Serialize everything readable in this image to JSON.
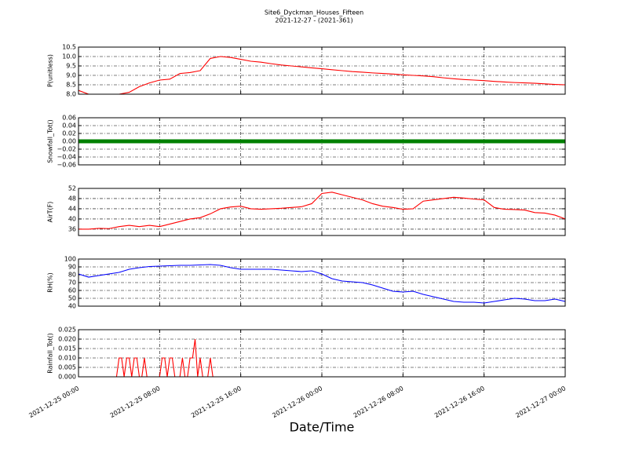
{
  "chart_data": [
    {
      "type": "line",
      "title": "Site6_Dyckman_Houses_Fifteen",
      "subtitle": "2021-12-27 - (2021-361)",
      "y_label": "P(unitless)",
      "color": "#ff0000",
      "xlim": [
        "2021-12-25 00:00",
        "2021-12-27 00:00"
      ],
      "x": [
        "2021-12-25 00:00",
        "2021-12-25 01:00",
        "2021-12-25 02:00",
        "2021-12-25 03:00",
        "2021-12-25 04:00",
        "2021-12-25 05:00",
        "2021-12-25 06:00",
        "2021-12-25 07:00",
        "2021-12-25 08:00",
        "2021-12-25 09:00",
        "2021-12-25 10:00",
        "2021-12-25 11:00",
        "2021-12-25 12:00",
        "2021-12-25 13:00",
        "2021-12-25 14:00",
        "2021-12-25 15:00",
        "2021-12-25 16:00",
        "2021-12-25 17:00",
        "2021-12-25 18:00",
        "2021-12-25 19:00",
        "2021-12-25 20:00",
        "2021-12-25 21:00",
        "2021-12-25 22:00",
        "2021-12-25 23:00",
        "2021-12-26 00:00",
        "2021-12-26 01:00",
        "2021-12-26 02:00",
        "2021-12-26 03:00",
        "2021-12-26 04:00",
        "2021-12-26 05:00",
        "2021-12-26 06:00",
        "2021-12-26 07:00",
        "2021-12-26 08:00",
        "2021-12-26 09:00",
        "2021-12-26 10:00",
        "2021-12-26 11:00",
        "2021-12-26 12:00",
        "2021-12-26 13:00",
        "2021-12-26 14:00",
        "2021-12-26 15:00",
        "2021-12-26 16:00",
        "2021-12-26 17:00",
        "2021-12-26 18:00",
        "2021-12-26 19:00",
        "2021-12-26 20:00",
        "2021-12-26 21:00",
        "2021-12-26 22:00",
        "2021-12-26 23:00",
        "2021-12-27 00:00"
      ],
      "values": [
        8.2,
        8.0,
        8.0,
        8.0,
        8.0,
        8.1,
        8.4,
        8.6,
        8.75,
        8.8,
        9.1,
        9.15,
        9.25,
        9.9,
        10.0,
        9.95,
        9.85,
        9.75,
        9.7,
        9.62,
        9.55,
        9.5,
        9.45,
        9.4,
        9.35,
        9.3,
        9.25,
        9.2,
        9.17,
        9.13,
        9.1,
        9.07,
        9.03,
        9.0,
        8.97,
        8.93,
        8.87,
        8.82,
        8.78,
        8.75,
        8.72,
        8.68,
        8.65,
        8.62,
        8.6,
        8.58,
        8.55,
        8.52,
        8.5
      ],
      "ylim": [
        8.0,
        10.5
      ],
      "yticks": [
        {
          "value": 8.0,
          "label": "8.0"
        },
        8.5,
        {
          "value": 9.0,
          "label": "9.0"
        },
        9.5,
        {
          "value": 10.0,
          "label": "10.0"
        },
        10.5
      ]
    },
    {
      "type": "line",
      "y_label": "Snowfall_Tot()",
      "color": "#008000",
      "xlim": [
        "2021-12-25 00:00",
        "2021-12-27 00:00"
      ],
      "x": [
        "2021-12-25 00:00",
        "2021-12-25 01:00",
        "2021-12-25 02:00",
        "2021-12-25 03:00",
        "2021-12-25 04:00",
        "2021-12-25 05:00",
        "2021-12-25 06:00",
        "2021-12-25 07:00",
        "2021-12-25 08:00",
        "2021-12-25 09:00",
        "2021-12-25 10:00",
        "2021-12-25 11:00",
        "2021-12-25 12:00",
        "2021-12-25 13:00",
        "2021-12-25 14:00",
        "2021-12-25 15:00",
        "2021-12-25 16:00",
        "2021-12-25 17:00",
        "2021-12-25 18:00",
        "2021-12-25 19:00",
        "2021-12-25 20:00",
        "2021-12-25 21:00",
        "2021-12-25 22:00",
        "2021-12-25 23:00",
        "2021-12-26 00:00",
        "2021-12-26 01:00",
        "2021-12-26 02:00",
        "2021-12-26 03:00",
        "2021-12-26 04:00",
        "2021-12-26 05:00",
        "2021-12-26 06:00",
        "2021-12-26 07:00",
        "2021-12-26 08:00",
        "2021-12-26 09:00",
        "2021-12-26 10:00",
        "2021-12-26 11:00",
        "2021-12-26 12:00",
        "2021-12-26 13:00",
        "2021-12-26 14:00",
        "2021-12-26 15:00",
        "2021-12-26 16:00",
        "2021-12-26 17:00",
        "2021-12-26 18:00",
        "2021-12-26 19:00",
        "2021-12-26 20:00",
        "2021-12-26 21:00",
        "2021-12-26 22:00",
        "2021-12-26 23:00",
        "2021-12-27 00:00"
      ],
      "values": [
        0,
        0,
        0,
        0,
        0,
        0,
        0,
        0,
        0,
        0,
        0,
        0,
        0,
        0,
        0,
        0,
        0,
        0,
        0,
        0,
        0,
        0,
        0,
        0,
        0,
        0,
        0,
        0,
        0,
        0,
        0,
        0,
        0,
        0,
        0,
        0,
        0,
        0,
        0,
        0,
        0,
        0,
        0,
        0,
        0,
        0,
        0,
        0,
        0
      ],
      "ylim": [
        -0.06,
        0.06
      ],
      "yticks": [
        {
          "value": -0.06,
          "label": "−0.06"
        },
        {
          "value": -0.04,
          "label": "−0.04"
        },
        {
          "value": -0.02,
          "label": "−0.02"
        },
        {
          "value": 0,
          "label": "0.00"
        },
        0.02,
        0.04,
        0.06
      ]
    },
    {
      "type": "line",
      "y_label": "AirT(F)",
      "color": "#ff0000",
      "xlim": [
        "2021-12-25 00:00",
        "2021-12-27 00:00"
      ],
      "x": [
        "2021-12-25 00:00",
        "2021-12-25 01:00",
        "2021-12-25 02:00",
        "2021-12-25 03:00",
        "2021-12-25 04:00",
        "2021-12-25 05:00",
        "2021-12-25 06:00",
        "2021-12-25 07:00",
        "2021-12-25 08:00",
        "2021-12-25 09:00",
        "2021-12-25 10:00",
        "2021-12-25 11:00",
        "2021-12-25 12:00",
        "2021-12-25 13:00",
        "2021-12-25 14:00",
        "2021-12-25 15:00",
        "2021-12-25 16:00",
        "2021-12-25 17:00",
        "2021-12-25 18:00",
        "2021-12-25 19:00",
        "2021-12-25 20:00",
        "2021-12-25 21:00",
        "2021-12-25 22:00",
        "2021-12-25 23:00",
        "2021-12-26 00:00",
        "2021-12-26 01:00",
        "2021-12-26 02:00",
        "2021-12-26 03:00",
        "2021-12-26 04:00",
        "2021-12-26 05:00",
        "2021-12-26 06:00",
        "2021-12-26 07:00",
        "2021-12-26 08:00",
        "2021-12-26 09:00",
        "2021-12-26 10:00",
        "2021-12-26 11:00",
        "2021-12-26 12:00",
        "2021-12-26 13:00",
        "2021-12-26 14:00",
        "2021-12-26 15:00",
        "2021-12-26 16:00",
        "2021-12-26 17:00",
        "2021-12-26 18:00",
        "2021-12-26 19:00",
        "2021-12-26 20:00",
        "2021-12-26 21:00",
        "2021-12-26 22:00",
        "2021-12-26 23:00",
        "2021-12-27 00:00"
      ],
      "values": [
        36,
        36,
        36.3,
        36.2,
        37,
        37.5,
        37,
        37.5,
        37,
        38,
        39,
        40,
        40.5,
        42,
        44,
        44.7,
        45,
        44,
        43.8,
        44,
        44.2,
        44.5,
        44.8,
        46,
        50,
        50.5,
        49.5,
        48.5,
        47.5,
        46,
        45,
        44.5,
        43.8,
        44,
        47,
        47.5,
        48,
        48.5,
        48.2,
        47.8,
        47.5,
        44.5,
        43.8,
        43.7,
        43.5,
        42.5,
        42.3,
        41.5,
        40
      ],
      "ylim": [
        33.5,
        52
      ],
      "yticks": [
        36,
        40,
        44,
        48,
        52
      ]
    },
    {
      "type": "line",
      "y_label": "RH(%)",
      "color": "#0000ff",
      "xlim": [
        "2021-12-25 00:00",
        "2021-12-27 00:00"
      ],
      "x": [
        "2021-12-25 00:00",
        "2021-12-25 01:00",
        "2021-12-25 02:00",
        "2021-12-25 03:00",
        "2021-12-25 04:00",
        "2021-12-25 05:00",
        "2021-12-25 06:00",
        "2021-12-25 07:00",
        "2021-12-25 08:00",
        "2021-12-25 09:00",
        "2021-12-25 10:00",
        "2021-12-25 11:00",
        "2021-12-25 12:00",
        "2021-12-25 13:00",
        "2021-12-25 14:00",
        "2021-12-25 15:00",
        "2021-12-25 16:00",
        "2021-12-25 17:00",
        "2021-12-25 18:00",
        "2021-12-25 19:00",
        "2021-12-25 20:00",
        "2021-12-25 21:00",
        "2021-12-25 22:00",
        "2021-12-25 23:00",
        "2021-12-26 00:00",
        "2021-12-26 01:00",
        "2021-12-26 02:00",
        "2021-12-26 03:00",
        "2021-12-26 04:00",
        "2021-12-26 05:00",
        "2021-12-26 06:00",
        "2021-12-26 07:00",
        "2021-12-26 08:00",
        "2021-12-26 09:00",
        "2021-12-26 10:00",
        "2021-12-26 11:00",
        "2021-12-26 12:00",
        "2021-12-26 13:00",
        "2021-12-26 14:00",
        "2021-12-26 15:00",
        "2021-12-26 16:00",
        "2021-12-26 17:00",
        "2021-12-26 18:00",
        "2021-12-26 19:00",
        "2021-12-26 20:00",
        "2021-12-26 21:00",
        "2021-12-26 22:00",
        "2021-12-26 23:00",
        "2021-12-27 00:00"
      ],
      "values": [
        81,
        77,
        79,
        81,
        83,
        87,
        89,
        90.5,
        91,
        91.5,
        92,
        92,
        92.5,
        93,
        92,
        89,
        87,
        87,
        87,
        87,
        86,
        85,
        84,
        85,
        81,
        75,
        72,
        71,
        70,
        67,
        63,
        59,
        58,
        59,
        55,
        52,
        49,
        46,
        45,
        45,
        44,
        46,
        48,
        50,
        49,
        47,
        47,
        49,
        46
      ],
      "ylim": [
        40,
        100
      ],
      "yticks": [
        40,
        50,
        60,
        70,
        80,
        90,
        100
      ]
    },
    {
      "type": "line",
      "y_label": "Rainfall_Tot()",
      "x_label": "Date/Time",
      "color": "#ff0000",
      "xlim": [
        "2021-12-25 00:00",
        "2021-12-27 00:00"
      ],
      "x": [
        "2021-12-25 00:00",
        "2021-12-25 03:30",
        "2021-12-25 03:45",
        "2021-12-25 04:00",
        "2021-12-25 04:15",
        "2021-12-25 04:30",
        "2021-12-25 04:45",
        "2021-12-25 05:00",
        "2021-12-25 05:15",
        "2021-12-25 05:30",
        "2021-12-25 05:45",
        "2021-12-25 06:00",
        "2021-12-25 06:15",
        "2021-12-25 06:30",
        "2021-12-25 06:45",
        "2021-12-25 07:00",
        "2021-12-25 07:15",
        "2021-12-25 07:30",
        "2021-12-25 07:45",
        "2021-12-25 08:00",
        "2021-12-25 08:15",
        "2021-12-25 08:30",
        "2021-12-25 08:45",
        "2021-12-25 09:00",
        "2021-12-25 09:15",
        "2021-12-25 09:30",
        "2021-12-25 09:45",
        "2021-12-25 10:00",
        "2021-12-25 10:15",
        "2021-12-25 10:30",
        "2021-12-25 10:45",
        "2021-12-25 11:00",
        "2021-12-25 11:15",
        "2021-12-25 11:30",
        "2021-12-25 11:45",
        "2021-12-25 12:00",
        "2021-12-25 12:15",
        "2021-12-25 12:30",
        "2021-12-25 12:45",
        "2021-12-25 13:00",
        "2021-12-25 13:15",
        "2021-12-25 13:30",
        "2021-12-27 00:00"
      ],
      "values": [
        0,
        0,
        0,
        0.01,
        0.01,
        0,
        0.01,
        0.01,
        0,
        0.01,
        0.01,
        0,
        0,
        0.01,
        0,
        0,
        0,
        0,
        0,
        0,
        0.01,
        0.01,
        0,
        0.01,
        0.01,
        0,
        0,
        0,
        0.01,
        0,
        0,
        0.01,
        0.01,
        0.02,
        0,
        0.01,
        0,
        0,
        0,
        0.01,
        0,
        0,
        0
      ],
      "ylim": [
        0,
        0.025
      ],
      "yticks": [
        {
          "value": 0,
          "label": "0.000"
        },
        {
          "value": 0.005,
          "label": "0.005"
        },
        {
          "value": 0.01,
          "label": "0.010"
        },
        {
          "value": 0.015,
          "label": "0.015"
        },
        {
          "value": 0.02,
          "label": "0.020"
        },
        {
          "value": 0.025,
          "label": "0.025"
        }
      ],
      "xticks": [
        {
          "value": "2021-12-25 00:00",
          "label": "2021-12-25 00:00"
        },
        {
          "value": "2021-12-25 08:00",
          "label": "2021-12-25 08:00"
        },
        {
          "value": "2021-12-25 16:00",
          "label": "2021-12-25 16:00"
        },
        {
          "value": "2021-12-26 00:00",
          "label": "2021-12-26 00:00"
        },
        {
          "value": "2021-12-26 08:00",
          "label": "2021-12-26 08:00"
        },
        {
          "value": "2021-12-26 16:00",
          "label": "2021-12-26 16:00"
        },
        {
          "value": "2021-12-27 00:00",
          "label": "2021-12-27 00:00"
        }
      ]
    }
  ]
}
